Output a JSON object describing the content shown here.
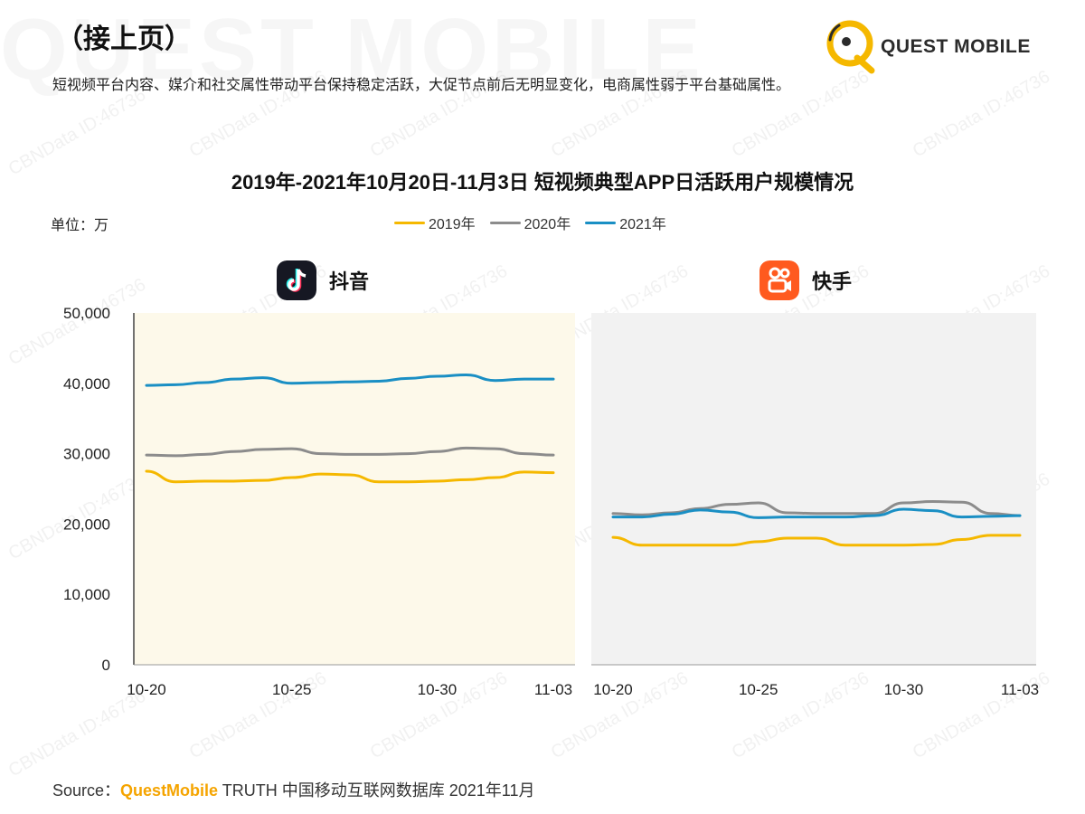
{
  "header": {
    "continued": "（接上页）",
    "subtitle": "短视频平台内容、媒介和社交属性带动平台保持稳定活跃，大促节点前后无明显变化，电商属性弱于平台基础属性。"
  },
  "logo": {
    "text": "QUEST MOBILE",
    "color": "#f5b800"
  },
  "watermark": {
    "text": "CBNData ID:46736",
    "big_text": "QUEST MOBILE"
  },
  "source": {
    "prefix": "Source：",
    "brand": "QuestMobile",
    "rest": " TRUTH 中国移动互联网数据库 2021年11月"
  },
  "chart_data": {
    "type": "line",
    "title": "2019年-2021年10月20日-11月3日 短视频典型APP日活跃用户规模情况",
    "unit_label": "单位：万",
    "y_ticks": [
      "0",
      "10,000",
      "20,000",
      "30,000",
      "40,000",
      "50,000"
    ],
    "ylim": [
      0,
      50000
    ],
    "legend": [
      {
        "name": "2019年",
        "color": "#f5b800"
      },
      {
        "name": "2020年",
        "color": "#8c8c8c"
      },
      {
        "name": "2021年",
        "color": "#1a8fc4"
      }
    ],
    "panels": [
      {
        "name": "抖音",
        "bg": "#fdf9ea",
        "x_ticks": [
          {
            "label": "10-20",
            "index": 0
          },
          {
            "label": "10-25",
            "index": 5
          },
          {
            "label": "10-30",
            "index": 10
          },
          {
            "label": "11-03",
            "index": 14
          }
        ],
        "series": [
          {
            "name": "2019年",
            "color": "#f5b800",
            "values": [
              27500,
              26000,
              26100,
              26100,
              26200,
              26600,
              27100,
              27000,
              26000,
              26000,
              26100,
              26300,
              26600,
              27400,
              27300
            ]
          },
          {
            "name": "2020年",
            "color": "#8c8c8c",
            "values": [
              29800,
              29700,
              29900,
              30300,
              30600,
              30700,
              30000,
              29900,
              29900,
              30000,
              30300,
              30800,
              30700,
              30000,
              29800
            ]
          },
          {
            "name": "2021年",
            "color": "#1a8fc4",
            "values": [
              39700,
              39800,
              40100,
              40600,
              40800,
              40000,
              40100,
              40200,
              40300,
              40700,
              41000,
              41200,
              40400,
              40600,
              40600
            ]
          }
        ]
      },
      {
        "name": "快手",
        "bg": "#f2f2f2",
        "x_ticks": [
          {
            "label": "10-20",
            "index": 0
          },
          {
            "label": "10-25",
            "index": 5
          },
          {
            "label": "10-30",
            "index": 10
          },
          {
            "label": "11-03",
            "index": 14
          }
        ],
        "series": [
          {
            "name": "2019年",
            "color": "#f5b800",
            "values": [
              18100,
              17000,
              17000,
              17000,
              17000,
              17500,
              18000,
              18000,
              17000,
              17000,
              17000,
              17100,
              17800,
              18400,
              18400
            ]
          },
          {
            "name": "2020年",
            "color": "#8c8c8c",
            "values": [
              21500,
              21300,
              21600,
              22200,
              22800,
              23000,
              21600,
              21500,
              21500,
              21500,
              23000,
              23200,
              23100,
              21500,
              21200
            ]
          },
          {
            "name": "2021年",
            "color": "#1a8fc4",
            "values": [
              21000,
              21000,
              21400,
              22000,
              21700,
              20900,
              21000,
              21000,
              21000,
              21200,
              22100,
              21900,
              21000,
              21100,
              21200
            ]
          }
        ]
      }
    ]
  }
}
